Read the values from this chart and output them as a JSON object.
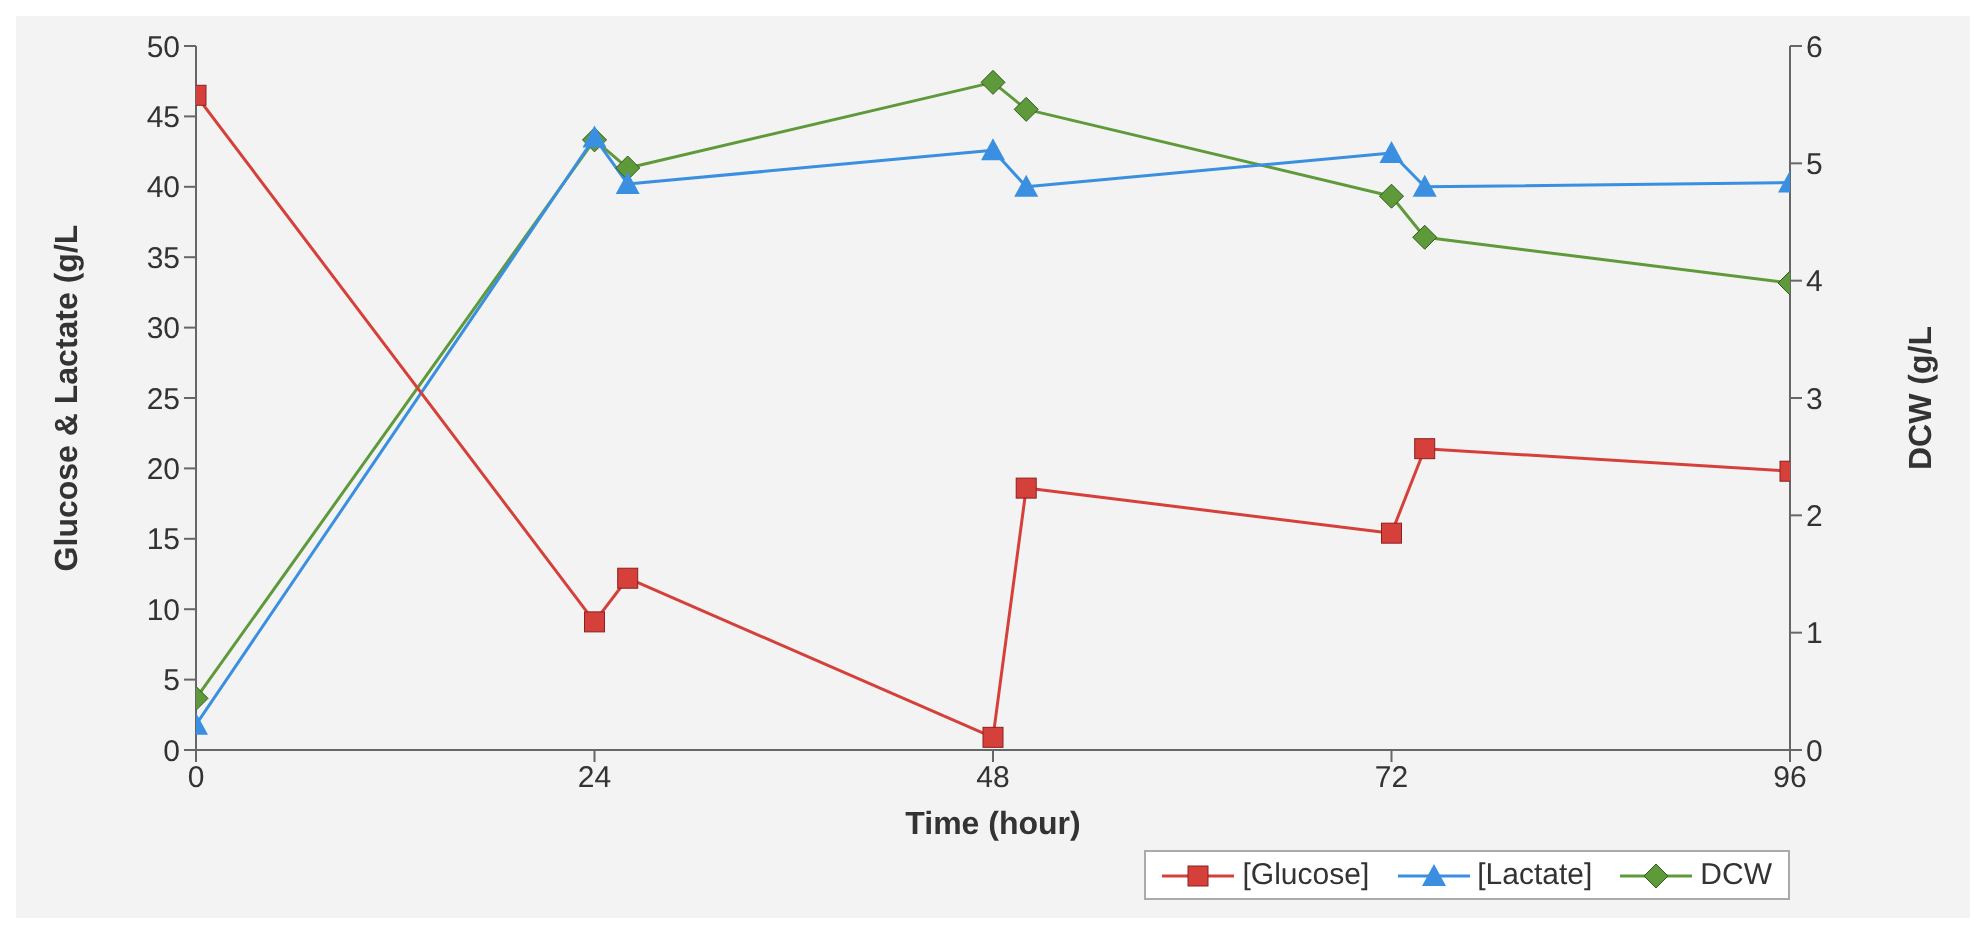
{
  "chart_data": {
    "type": "line",
    "xlabel": "Time (hour)",
    "ylabel": "Glucose & Lactate (g/L",
    "y2label": "DCW (g/L",
    "x": [
      0,
      24,
      26,
      48,
      50,
      72,
      74,
      96
    ],
    "xlim": [
      0,
      96
    ],
    "xticks": [
      0,
      24,
      48,
      72,
      96
    ],
    "ylim": [
      0,
      50
    ],
    "yticks": [
      0,
      5,
      10,
      15,
      20,
      25,
      30,
      35,
      40,
      45,
      50
    ],
    "y2lim": [
      0,
      6
    ],
    "y2ticks": [
      0,
      1,
      2,
      3,
      4,
      5,
      6
    ],
    "grid": false,
    "legend": "bottom right",
    "series": [
      {
        "name": "[Glucose]",
        "color": "#d6403a",
        "marker": "square",
        "values": [
          46.5,
          9.1,
          12.2,
          0.9,
          18.6,
          15.4,
          21.4,
          19.8
        ]
      },
      {
        "name": "[Lactate]",
        "color": "#3a8fe0",
        "marker": "triangle",
        "values": [
          1.8,
          43.5,
          40.2,
          42.6,
          40,
          42.4,
          40,
          40.3
        ]
      },
      {
        "name": "DCW",
        "color": "#5e9a3a",
        "marker": "diamond",
        "axis": "y2",
        "values": [
          0.44,
          5.2,
          4.96,
          5.69,
          5.46,
          4.72,
          4.37,
          3.98
        ]
      }
    ]
  }
}
